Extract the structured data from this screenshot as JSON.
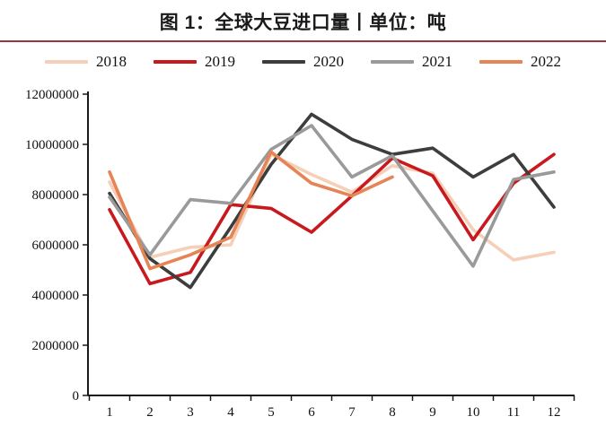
{
  "header": {
    "title": "图 1：全球大豆进口量丨单位：吨",
    "rule_color": "#97393a"
  },
  "axis": {
    "line_color": "#1a1a1a",
    "y_tick_labels": [
      "0",
      "2000000",
      "4000000",
      "6000000",
      "8000000",
      "10000000",
      "12000000"
    ],
    "x_tick_labels": [
      "1",
      "2",
      "3",
      "4",
      "5",
      "6",
      "7",
      "8",
      "9",
      "10",
      "11",
      "12"
    ]
  },
  "chart_data": {
    "type": "line",
    "title": "图 1：全球大豆进口量丨单位：吨",
    "unit": "吨",
    "xlabel": "",
    "ylabel": "",
    "x": [
      1,
      2,
      3,
      4,
      5,
      6,
      7,
      8,
      9,
      10,
      11,
      12
    ],
    "ylim": [
      0,
      12000000
    ],
    "ytick_step": 2000000,
    "grid": false,
    "legend_position": "top",
    "series": [
      {
        "name": "2018",
        "color": "#f5cfb8",
        "values": [
          8500000,
          5500000,
          5900000,
          6000000,
          9600000,
          8800000,
          8100000,
          9150000,
          8850000,
          6600000,
          5400000,
          5700000
        ]
      },
      {
        "name": "2019",
        "color": "#c8191f",
        "values": [
          7400000,
          4450000,
          4900000,
          7600000,
          7450000,
          6500000,
          7950000,
          9450000,
          8750000,
          6200000,
          8450000,
          9600000
        ]
      },
      {
        "name": "2020",
        "color": "#3d3d3d",
        "values": [
          8050000,
          5450000,
          4300000,
          6700000,
          9200000,
          11200000,
          10200000,
          9600000,
          9850000,
          8700000,
          9600000,
          7500000
        ]
      },
      {
        "name": "2021",
        "color": "#9a9a9a",
        "values": [
          7900000,
          5600000,
          7800000,
          7650000,
          9800000,
          10750000,
          8700000,
          9550000,
          7350000,
          5150000,
          8600000,
          8900000
        ]
      },
      {
        "name": "2022",
        "color": "#e68455",
        "values": [
          8900000,
          5050000,
          5600000,
          6300000,
          9700000,
          8450000,
          7950000,
          8700000
        ]
      }
    ]
  }
}
